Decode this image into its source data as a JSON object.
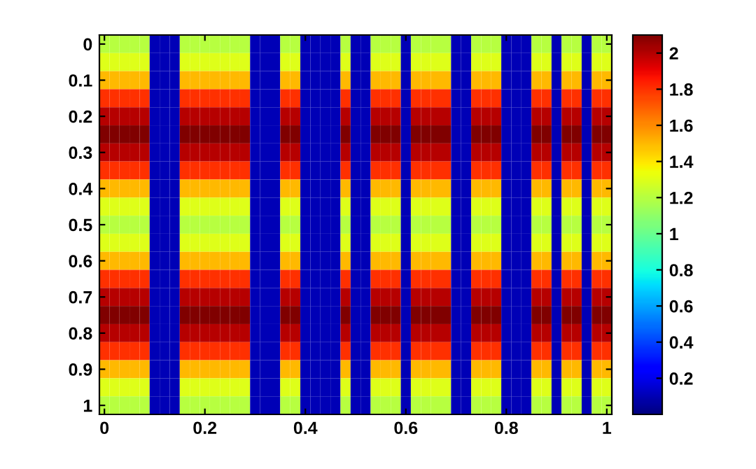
{
  "chart_data": {
    "type": "heatmap",
    "categories": [
      "0",
      null,
      null,
      null,
      null,
      null,
      null,
      null,
      null,
      null,
      "0.2",
      null,
      null,
      null,
      null,
      null,
      null,
      null,
      null,
      null,
      "0.4",
      null,
      null,
      null,
      null,
      null,
      null,
      null,
      null,
      null,
      "0.6",
      null,
      null,
      null,
      null,
      null,
      null,
      null,
      null,
      null,
      "0.8",
      null,
      null,
      null,
      null,
      null,
      null,
      null,
      null,
      null,
      "1"
    ],
    "y_categories": [
      "0",
      null,
      "0.1",
      null,
      "0.2",
      null,
      "0.3",
      null,
      "0.4",
      null,
      "0.5",
      null,
      "0.6",
      null,
      "0.7",
      null,
      "0.8",
      null,
      "0.9",
      null,
      "1"
    ],
    "cells": [
      [
        1.2,
        1.2,
        1.2,
        1.2,
        1.2,
        0.1,
        0.1,
        0.1,
        1.2,
        1.2,
        1.2,
        1.2,
        1.2,
        1.2,
        1.2,
        0.1,
        0.1,
        0.1,
        1.2,
        1.2,
        0.1,
        0.1,
        0.1,
        0.1,
        1.2,
        0.1,
        0.1,
        1.2,
        1.2,
        1.2,
        0.1,
        1.2,
        1.2,
        1.2,
        1.2,
        0.1,
        0.1,
        1.2,
        1.2,
        1.2,
        0.1,
        0.1,
        0.1,
        1.2,
        1.2,
        0.1,
        1.2,
        1.2,
        0.1,
        1.2,
        1.2
      ],
      [
        1.3,
        1.3,
        1.3,
        1.3,
        1.3,
        0.1,
        0.1,
        0.1,
        1.3,
        1.3,
        1.3,
        1.3,
        1.3,
        1.3,
        1.3,
        0.1,
        0.1,
        0.1,
        1.3,
        1.3,
        0.1,
        0.1,
        0.1,
        0.1,
        1.3,
        0.1,
        0.1,
        1.3,
        1.3,
        1.3,
        0.1,
        1.3,
        1.3,
        1.3,
        1.3,
        0.1,
        0.1,
        1.3,
        1.3,
        1.3,
        0.1,
        0.1,
        0.1,
        1.3,
        1.3,
        0.1,
        1.3,
        1.3,
        0.1,
        1.3,
        1.3
      ],
      [
        1.5,
        1.5,
        1.5,
        1.5,
        1.5,
        0.1,
        0.1,
        0.1,
        1.5,
        1.5,
        1.5,
        1.5,
        1.5,
        1.5,
        1.5,
        0.1,
        0.1,
        0.1,
        1.5,
        1.5,
        0.1,
        0.1,
        0.1,
        0.1,
        1.5,
        0.1,
        0.1,
        1.5,
        1.5,
        1.5,
        0.1,
        1.5,
        1.5,
        1.5,
        1.5,
        0.1,
        0.1,
        1.5,
        1.5,
        1.5,
        0.1,
        0.1,
        0.1,
        1.5,
        1.5,
        0.1,
        1.5,
        1.5,
        0.1,
        1.5,
        1.5
      ],
      [
        1.8,
        1.8,
        1.8,
        1.8,
        1.8,
        0.1,
        0.1,
        0.1,
        1.8,
        1.8,
        1.8,
        1.8,
        1.8,
        1.8,
        1.8,
        0.1,
        0.1,
        0.1,
        1.8,
        1.8,
        0.1,
        0.1,
        0.1,
        0.1,
        1.8,
        0.1,
        0.1,
        1.8,
        1.8,
        1.8,
        0.1,
        1.8,
        1.8,
        1.8,
        1.8,
        0.1,
        0.1,
        1.8,
        1.8,
        1.8,
        0.1,
        0.1,
        0.1,
        1.8,
        1.8,
        0.1,
        1.8,
        1.8,
        0.1,
        1.8,
        1.8
      ],
      [
        2.0,
        2.0,
        2.0,
        2.0,
        2.0,
        0.1,
        0.1,
        0.1,
        2.0,
        2.0,
        2.0,
        2.0,
        2.0,
        2.0,
        2.0,
        0.1,
        0.1,
        0.1,
        2.0,
        2.0,
        0.1,
        0.1,
        0.1,
        0.1,
        2.0,
        0.1,
        0.1,
        2.0,
        2.0,
        2.0,
        0.1,
        2.0,
        2.0,
        2.0,
        2.0,
        0.1,
        0.1,
        2.0,
        2.0,
        2.0,
        0.1,
        0.1,
        0.1,
        2.0,
        2.0,
        0.1,
        2.0,
        2.0,
        0.1,
        2.0,
        2.0
      ],
      [
        2.1,
        2.1,
        2.1,
        2.1,
        2.1,
        0.1,
        0.1,
        0.1,
        2.1,
        2.1,
        2.1,
        2.1,
        2.1,
        2.1,
        2.1,
        0.1,
        0.1,
        0.1,
        2.1,
        2.1,
        0.1,
        0.1,
        0.1,
        0.1,
        2.1,
        0.1,
        0.1,
        2.1,
        2.1,
        2.1,
        0.1,
        2.1,
        2.1,
        2.1,
        2.1,
        0.1,
        0.1,
        2.1,
        2.1,
        2.1,
        0.1,
        0.1,
        0.1,
        2.1,
        2.1,
        0.1,
        2.1,
        2.1,
        0.1,
        2.1,
        2.1
      ],
      [
        2.0,
        2.0,
        2.0,
        2.0,
        2.0,
        0.1,
        0.1,
        0.1,
        2.0,
        2.0,
        2.0,
        2.0,
        2.0,
        2.0,
        2.0,
        0.1,
        0.1,
        0.1,
        2.0,
        2.0,
        0.1,
        0.1,
        0.1,
        0.1,
        2.0,
        0.1,
        0.1,
        2.0,
        2.0,
        2.0,
        0.1,
        2.0,
        2.0,
        2.0,
        2.0,
        0.1,
        0.1,
        2.0,
        2.0,
        2.0,
        0.1,
        0.1,
        0.1,
        2.0,
        2.0,
        0.1,
        2.0,
        2.0,
        0.1,
        2.0,
        2.0
      ],
      [
        1.8,
        1.8,
        1.8,
        1.8,
        1.8,
        0.1,
        0.1,
        0.1,
        1.8,
        1.8,
        1.8,
        1.8,
        1.8,
        1.8,
        1.8,
        0.1,
        0.1,
        0.1,
        1.8,
        1.8,
        0.1,
        0.1,
        0.1,
        0.1,
        1.8,
        0.1,
        0.1,
        1.8,
        1.8,
        1.8,
        0.1,
        1.8,
        1.8,
        1.8,
        1.8,
        0.1,
        0.1,
        1.8,
        1.8,
        1.8,
        0.1,
        0.1,
        0.1,
        1.8,
        1.8,
        0.1,
        1.8,
        1.8,
        0.1,
        1.8,
        1.8
      ],
      [
        1.5,
        1.5,
        1.5,
        1.5,
        1.5,
        0.1,
        0.1,
        0.1,
        1.5,
        1.5,
        1.5,
        1.5,
        1.5,
        1.5,
        1.5,
        0.1,
        0.1,
        0.1,
        1.5,
        1.5,
        0.1,
        0.1,
        0.1,
        0.1,
        1.5,
        0.1,
        0.1,
        1.5,
        1.5,
        1.5,
        0.1,
        1.5,
        1.5,
        1.5,
        1.5,
        0.1,
        0.1,
        1.5,
        1.5,
        1.5,
        0.1,
        0.1,
        0.1,
        1.5,
        1.5,
        0.1,
        1.5,
        1.5,
        0.1,
        1.5,
        1.5
      ],
      [
        1.3,
        1.3,
        1.3,
        1.3,
        1.3,
        0.1,
        0.1,
        0.1,
        1.3,
        1.3,
        1.3,
        1.3,
        1.3,
        1.3,
        1.3,
        0.1,
        0.1,
        0.1,
        1.3,
        1.3,
        0.1,
        0.1,
        0.1,
        0.1,
        1.3,
        0.1,
        0.1,
        1.3,
        1.3,
        1.3,
        0.1,
        1.3,
        1.3,
        1.3,
        1.3,
        0.1,
        0.1,
        1.3,
        1.3,
        1.3,
        0.1,
        0.1,
        0.1,
        1.3,
        1.3,
        0.1,
        1.3,
        1.3,
        0.1,
        1.3,
        1.3
      ],
      [
        1.2,
        1.2,
        1.2,
        1.2,
        1.2,
        0.1,
        0.1,
        0.1,
        1.2,
        1.2,
        1.2,
        1.2,
        1.2,
        1.2,
        1.2,
        0.1,
        0.1,
        0.1,
        1.2,
        1.2,
        0.1,
        0.1,
        0.1,
        0.1,
        1.2,
        0.1,
        0.1,
        1.2,
        1.2,
        1.2,
        0.1,
        1.2,
        1.2,
        1.2,
        1.2,
        0.1,
        0.1,
        1.2,
        1.2,
        1.2,
        0.1,
        0.1,
        0.1,
        1.2,
        1.2,
        0.1,
        1.2,
        1.2,
        0.1,
        1.2,
        1.2
      ],
      [
        1.3,
        1.3,
        1.3,
        1.3,
        1.3,
        0.1,
        0.1,
        0.1,
        1.3,
        1.3,
        1.3,
        1.3,
        1.3,
        1.3,
        1.3,
        0.1,
        0.1,
        0.1,
        1.3,
        1.3,
        0.1,
        0.1,
        0.1,
        0.1,
        1.3,
        0.1,
        0.1,
        1.3,
        1.3,
        1.3,
        0.1,
        1.3,
        1.3,
        1.3,
        1.3,
        0.1,
        0.1,
        1.3,
        1.3,
        1.3,
        0.1,
        0.1,
        0.1,
        1.3,
        1.3,
        0.1,
        1.3,
        1.3,
        0.1,
        1.3,
        1.3
      ],
      [
        1.5,
        1.5,
        1.5,
        1.5,
        1.5,
        0.1,
        0.1,
        0.1,
        1.5,
        1.5,
        1.5,
        1.5,
        1.5,
        1.5,
        1.5,
        0.1,
        0.1,
        0.1,
        1.5,
        1.5,
        0.1,
        0.1,
        0.1,
        0.1,
        1.5,
        0.1,
        0.1,
        1.5,
        1.5,
        1.5,
        0.1,
        1.5,
        1.5,
        1.5,
        1.5,
        0.1,
        0.1,
        1.5,
        1.5,
        1.5,
        0.1,
        0.1,
        0.1,
        1.5,
        1.5,
        0.1,
        1.5,
        1.5,
        0.1,
        1.5,
        1.5
      ],
      [
        1.8,
        1.8,
        1.8,
        1.8,
        1.8,
        0.1,
        0.1,
        0.1,
        1.8,
        1.8,
        1.8,
        1.8,
        1.8,
        1.8,
        1.8,
        0.1,
        0.1,
        0.1,
        1.8,
        1.8,
        0.1,
        0.1,
        0.1,
        0.1,
        1.8,
        0.1,
        0.1,
        1.8,
        1.8,
        1.8,
        0.1,
        1.8,
        1.8,
        1.8,
        1.8,
        0.1,
        0.1,
        1.8,
        1.8,
        1.8,
        0.1,
        0.1,
        0.1,
        1.8,
        1.8,
        0.1,
        1.8,
        1.8,
        0.1,
        1.8,
        1.8
      ],
      [
        2.0,
        2.0,
        2.0,
        2.0,
        2.0,
        0.1,
        0.1,
        0.1,
        2.0,
        2.0,
        2.0,
        2.0,
        2.0,
        2.0,
        2.0,
        0.1,
        0.1,
        0.1,
        2.0,
        2.0,
        0.1,
        0.1,
        0.1,
        0.1,
        2.0,
        0.1,
        0.1,
        2.0,
        2.0,
        2.0,
        0.1,
        2.0,
        2.0,
        2.0,
        2.0,
        0.1,
        0.1,
        2.0,
        2.0,
        2.0,
        0.1,
        0.1,
        0.1,
        2.0,
        2.0,
        0.1,
        2.0,
        2.0,
        0.1,
        2.0,
        2.0
      ],
      [
        2.1,
        2.1,
        2.1,
        2.1,
        2.1,
        0.1,
        0.1,
        0.1,
        2.1,
        2.1,
        2.1,
        2.1,
        2.1,
        2.1,
        2.1,
        0.1,
        0.1,
        0.1,
        2.1,
        2.1,
        0.1,
        0.1,
        0.1,
        0.1,
        2.1,
        0.1,
        0.1,
        2.1,
        2.1,
        2.1,
        0.1,
        2.1,
        2.1,
        2.1,
        2.1,
        0.1,
        0.1,
        2.1,
        2.1,
        2.1,
        0.1,
        0.1,
        0.1,
        2.1,
        2.1,
        0.1,
        2.1,
        2.1,
        0.1,
        2.1,
        2.1
      ],
      [
        2.0,
        2.0,
        2.0,
        2.0,
        2.0,
        0.1,
        0.1,
        0.1,
        2.0,
        2.0,
        2.0,
        2.0,
        2.0,
        2.0,
        2.0,
        0.1,
        0.1,
        0.1,
        2.0,
        2.0,
        0.1,
        0.1,
        0.1,
        0.1,
        2.0,
        0.1,
        0.1,
        2.0,
        2.0,
        2.0,
        0.1,
        2.0,
        2.0,
        2.0,
        2.0,
        0.1,
        0.1,
        2.0,
        2.0,
        2.0,
        0.1,
        0.1,
        0.1,
        2.0,
        2.0,
        0.1,
        2.0,
        2.0,
        0.1,
        2.0,
        2.0
      ],
      [
        1.8,
        1.8,
        1.8,
        1.8,
        1.8,
        0.1,
        0.1,
        0.1,
        1.8,
        1.8,
        1.8,
        1.8,
        1.8,
        1.8,
        1.8,
        0.1,
        0.1,
        0.1,
        1.8,
        1.8,
        0.1,
        0.1,
        0.1,
        0.1,
        1.8,
        0.1,
        0.1,
        1.8,
        1.8,
        1.8,
        0.1,
        1.8,
        1.8,
        1.8,
        1.8,
        0.1,
        0.1,
        1.8,
        1.8,
        1.8,
        0.1,
        0.1,
        0.1,
        1.8,
        1.8,
        0.1,
        1.8,
        1.8,
        0.1,
        1.8,
        1.8
      ],
      [
        1.5,
        1.5,
        1.5,
        1.5,
        1.5,
        0.1,
        0.1,
        0.1,
        1.5,
        1.5,
        1.5,
        1.5,
        1.5,
        1.5,
        1.5,
        0.1,
        0.1,
        0.1,
        1.5,
        1.5,
        0.1,
        0.1,
        0.1,
        0.1,
        1.5,
        0.1,
        0.1,
        1.5,
        1.5,
        1.5,
        0.1,
        1.5,
        1.5,
        1.5,
        1.5,
        0.1,
        0.1,
        1.5,
        1.5,
        1.5,
        0.1,
        0.1,
        0.1,
        1.5,
        1.5,
        0.1,
        1.5,
        1.5,
        0.1,
        1.5,
        1.5
      ],
      [
        1.3,
        1.3,
        1.3,
        1.3,
        1.3,
        0.1,
        0.1,
        0.1,
        1.3,
        1.3,
        1.3,
        1.3,
        1.3,
        1.3,
        1.3,
        0.1,
        0.1,
        0.1,
        1.3,
        1.3,
        0.1,
        0.1,
        0.1,
        0.1,
        1.3,
        0.1,
        0.1,
        1.3,
        1.3,
        1.3,
        0.1,
        1.3,
        1.3,
        1.3,
        1.3,
        0.1,
        0.1,
        1.3,
        1.3,
        1.3,
        0.1,
        0.1,
        0.1,
        1.3,
        1.3,
        0.1,
        1.3,
        1.3,
        0.1,
        1.3,
        1.3
      ],
      [
        1.2,
        1.2,
        1.2,
        1.2,
        1.2,
        0.1,
        0.1,
        0.1,
        1.2,
        1.2,
        1.2,
        1.2,
        1.2,
        1.2,
        1.2,
        0.1,
        0.1,
        0.1,
        1.2,
        1.2,
        0.1,
        0.1,
        0.1,
        0.1,
        1.2,
        0.1,
        0.1,
        1.2,
        1.2,
        1.2,
        0.1,
        1.2,
        1.2,
        1.2,
        1.2,
        0.1,
        0.1,
        1.2,
        1.2,
        1.2,
        0.1,
        0.1,
        0.1,
        1.2,
        1.2,
        0.1,
        1.2,
        1.2,
        0.1,
        1.2,
        1.2
      ]
    ],
    "clim": [
      0,
      2.1
    ],
    "cticks": [
      0.2,
      0.4,
      0.6,
      0.8,
      1,
      1.2,
      1.4,
      1.6,
      1.8,
      2
    ],
    "grid": false
  }
}
